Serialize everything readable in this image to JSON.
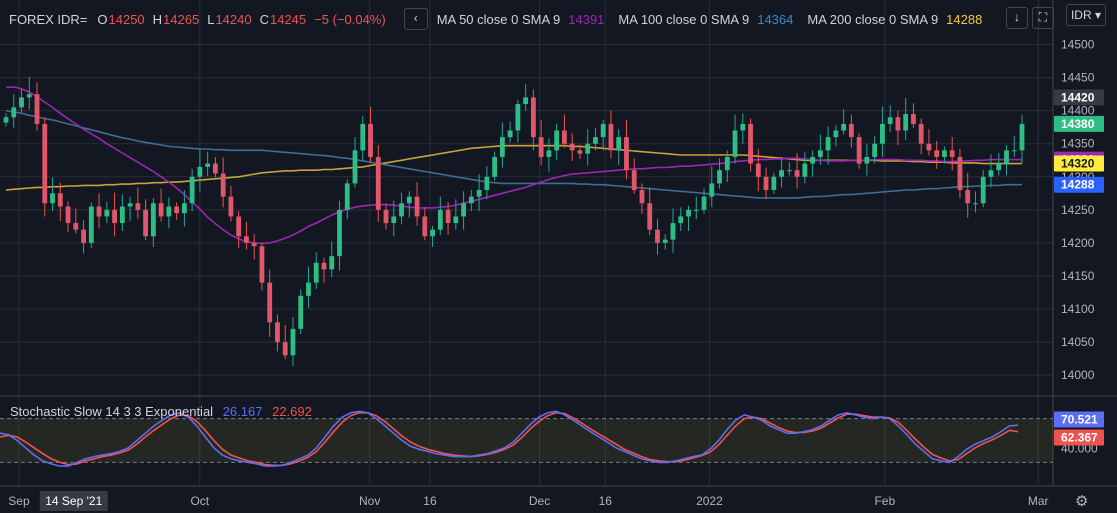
{
  "header": {
    "symbol": "FOREX IDR=",
    "open_label": "O",
    "open": "14250",
    "high_label": "H",
    "high": "14265",
    "low_label": "L",
    "low": "14240",
    "close_label": "C",
    "close": "14245",
    "change": "−5 (−0.04%)",
    "ma50_label": "MA 50 close 0 SMA 9",
    "ma50_value": "14391",
    "ma100_label": "MA 100 close 0 SMA 9",
    "ma100_value": "14364",
    "ma200_label": "MA 200 close 0 SMA 9",
    "ma200_value": "14288",
    "currency_button": "IDR",
    "collapse_icon": "chevron-left-icon",
    "download_icon": "download-arrow-icon",
    "fullscreen_icon": "fullscreen-icon",
    "settings_icon": "gear-icon"
  },
  "stochastic": {
    "label": "Stochastic Slow 14 3 3 Exponential",
    "k_value": "26.167",
    "d_value": "22.692"
  },
  "colors": {
    "background": "#131722",
    "grid": "#2a2e39",
    "up": "#26a69a",
    "up_body": "#2ebd85",
    "down": "#ef5350",
    "down_body": "#e0576b",
    "ma50": "#9c27b0",
    "ma100": "#3d6e94",
    "ma200": "#c9a23b",
    "stoch_k": "#5b6ef5",
    "stoch_d": "#ef5350",
    "text": "#d1d4dc"
  },
  "chart_data": {
    "type": "candlestick",
    "y_ticks": [
      "14500",
      "14450",
      "14400",
      "14350",
      "14300",
      "14250",
      "14200",
      "14150",
      "14100",
      "14050",
      "14000"
    ],
    "ylim": [
      13970,
      14525
    ],
    "price_badges": [
      {
        "value": "14420",
        "color": "#363a45",
        "text": "#ffffff"
      },
      {
        "value": "14380",
        "color": "#2ebd85",
        "text": "#ffffff"
      },
      {
        "value": "14326",
        "color": "#9c27b0",
        "text": "#ffffff"
      },
      {
        "value": "14320",
        "color": "#ffeb3b",
        "text": "#131722"
      },
      {
        "value": "14288",
        "color": "#2962ff",
        "text": "#ffffff"
      }
    ],
    "x_labels": [
      {
        "label": "Sep",
        "x": 2
      },
      {
        "label": "Oct",
        "x": 35
      },
      {
        "label": "Nov",
        "x": 66
      },
      {
        "label": "16",
        "x": 77
      },
      {
        "label": "Dec",
        "x": 97
      },
      {
        "label": "16",
        "x": 109
      },
      {
        "label": "2022",
        "x": 128
      },
      {
        "label": "Feb",
        "x": 160
      },
      {
        "label": "Mar",
        "x": 188
      }
    ],
    "x_highlight": "14 Sep '21",
    "x_highlight_at": 12,
    "closes": [
      14390,
      14405,
      14420,
      14425,
      14380,
      14260,
      14275,
      14255,
      14230,
      14220,
      14200,
      14255,
      14240,
      14250,
      14230,
      14255,
      14260,
      14250,
      14210,
      14260,
      14240,
      14255,
      14245,
      14260,
      14300,
      14315,
      14320,
      14305,
      14270,
      14240,
      14210,
      14200,
      14195,
      14140,
      14080,
      14050,
      14030,
      14070,
      14120,
      14140,
      14170,
      14160,
      14180,
      14250,
      14290,
      14340,
      14380,
      14330,
      14250,
      14230,
      14240,
      14260,
      14270,
      14240,
      14210,
      14220,
      14250,
      14230,
      14240,
      14260,
      14270,
      14280,
      14300,
      14330,
      14360,
      14370,
      14410,
      14420,
      14360,
      14330,
      14340,
      14370,
      14350,
      14340,
      14335,
      14350,
      14360,
      14380,
      14340,
      14360,
      14310,
      14280,
      14260,
      14220,
      14200,
      14205,
      14230,
      14240,
      14250,
      14250,
      14270,
      14290,
      14310,
      14330,
      14370,
      14380,
      14320,
      14300,
      14280,
      14300,
      14310,
      14310,
      14300,
      14320,
      14330,
      14340,
      14360,
      14370,
      14380,
      14360,
      14320,
      14330,
      14350,
      14380,
      14390,
      14370,
      14395,
      14380,
      14350,
      14340,
      14330,
      14340,
      14330,
      14280,
      14260,
      14260,
      14300,
      14310,
      14320,
      14340,
      14340,
      14380
    ],
    "ma50": [
      14435,
      14436,
      14433,
      14428,
      14421,
      14413,
      14405,
      14396,
      14388,
      14380,
      14372,
      14365,
      14358,
      14350,
      14343,
      14336,
      14329,
      14322,
      14315,
      14308,
      14300,
      14292,
      14283,
      14273,
      14262,
      14251,
      14239,
      14229,
      14220,
      14212,
      14206,
      14202,
      14200,
      14199,
      14200,
      14203,
      14207,
      14212,
      14218,
      14225,
      14230,
      14236,
      14242,
      14247,
      14251,
      14254,
      14256,
      14257,
      14258,
      14258,
      14257,
      14256,
      14254,
      14253,
      14253,
      14253,
      14254,
      14255,
      14257,
      14260,
      14263,
      14266,
      14269,
      14272,
      14275,
      14278,
      14281,
      14284,
      14288,
      14292,
      14296,
      14299,
      14302,
      14304,
      14305,
      14306,
      14307,
      14308,
      14309,
      14310,
      14311,
      14312,
      14312,
      14313,
      14314,
      14314,
      14315,
      14316,
      14316,
      14317,
      14318,
      14319,
      14320,
      14321,
      14323,
      14324,
      14325,
      14326,
      14326,
      14327,
      14327,
      14328,
      14328,
      14327,
      14326,
      14325,
      14324,
      14324,
      14324,
      14325,
      14325,
      14325,
      14326,
      14326,
      14326,
      14326,
      14325,
      14325,
      14325,
      14324,
      14324,
      14323,
      14323,
      14324,
      14324,
      14325,
      14325,
      14326,
      14326,
      14326,
      14326,
      14326
    ],
    "ma100": [
      14400,
      14398,
      14396,
      14393,
      14391,
      14388,
      14386,
      14383,
      14380,
      14377,
      14374,
      14371,
      14368,
      14365,
      14362,
      14359,
      14357,
      14354,
      14352,
      14350,
      14348,
      14346,
      14345,
      14344,
      14343,
      14342,
      14342,
      14341,
      14341,
      14340,
      14340,
      14340,
      14340,
      14340,
      14339,
      14338,
      14337,
      14336,
      14335,
      14334,
      14333,
      14332,
      14331,
      14329,
      14328,
      14326,
      14324,
      14322,
      14320,
      14318,
      14316,
      14314,
      14312,
      14310,
      14308,
      14306,
      14304,
      14302,
      14300,
      14298,
      14296,
      14294,
      14292,
      14291,
      14290,
      14290,
      14290,
      14290,
      14290,
      14290,
      14290,
      14290,
      14290,
      14290,
      14289,
      14289,
      14288,
      14288,
      14287,
      14286,
      14285,
      14284,
      14283,
      14282,
      14281,
      14280,
      14279,
      14278,
      14277,
      14276,
      14275,
      14274,
      14273,
      14272,
      14271,
      14270,
      14269,
      14268,
      14268,
      14268,
      14268,
      14268,
      14268,
      14269,
      14270,
      14270,
      14271,
      14272,
      14273,
      14273,
      14274,
      14275,
      14276,
      14277,
      14278,
      14279,
      14280,
      14280,
      14281,
      14282,
      14282,
      14283,
      14284,
      14285,
      14285,
      14286,
      14286,
      14287,
      14287,
      14288,
      14288,
      14288
    ],
    "ma200": [
      14280,
      14281,
      14282,
      14283,
      14284,
      14284,
      14285,
      14285,
      14286,
      14286,
      14287,
      14287,
      14287,
      14288,
      14288,
      14289,
      14289,
      14290,
      14290,
      14291,
      14291,
      14292,
      14292,
      14293,
      14294,
      14295,
      14296,
      14297,
      14298,
      14299,
      14300,
      14302,
      14304,
      14306,
      14307,
      14308,
      14309,
      14309,
      14310,
      14310,
      14310,
      14311,
      14311,
      14312,
      14313,
      14314,
      14315,
      14317,
      14319,
      14321,
      14323,
      14325,
      14327,
      14329,
      14331,
      14333,
      14335,
      14337,
      14339,
      14341,
      14343,
      14344,
      14345,
      14346,
      14347,
      14347,
      14347,
      14347,
      14347,
      14347,
      14347,
      14347,
      14347,
      14346,
      14346,
      14345,
      14344,
      14343,
      14342,
      14341,
      14340,
      14339,
      14338,
      14337,
      14336,
      14335,
      14334,
      14333,
      14333,
      14333,
      14333,
      14333,
      14333,
      14333,
      14333,
      14333,
      14332,
      14331,
      14330,
      14329,
      14328,
      14327,
      14326,
      14325,
      14325,
      14325,
      14325,
      14325,
      14325,
      14325,
      14325,
      14325,
      14325,
      14324,
      14324,
      14324,
      14324,
      14323,
      14323,
      14322,
      14322,
      14322,
      14321,
      14321,
      14321,
      14321,
      14320,
      14320,
      14320,
      14320,
      14320,
      14320
    ],
    "stoch_ylim": [
      0,
      100
    ],
    "stoch_levels": [
      80,
      20
    ],
    "stoch_axis_ticks": [
      "80.000",
      "40.000"
    ],
    "stoch_badges": [
      {
        "value": "70.521",
        "color": "#5b6ef5"
      },
      {
        "value": "62.367",
        "color": "#ef5350"
      }
    ],
    "stoch_k": [
      60,
      58,
      50,
      40,
      30,
      22,
      18,
      15,
      15,
      20,
      25,
      28,
      30,
      32,
      35,
      40,
      50,
      60,
      70,
      78,
      85,
      88,
      82,
      70,
      55,
      40,
      30,
      25,
      22,
      20,
      18,
      15,
      15,
      16,
      20,
      25,
      30,
      40,
      55,
      70,
      82,
      88,
      90,
      88,
      80,
      70,
      60,
      50,
      42,
      38,
      35,
      32,
      30,
      28,
      28,
      28,
      30,
      32,
      36,
      40,
      48,
      60,
      72,
      82,
      88,
      90,
      85,
      78,
      70,
      62,
      55,
      48,
      40,
      35,
      30,
      25,
      22,
      20,
      20,
      22,
      25,
      28,
      30,
      38,
      50,
      65,
      78,
      85,
      82,
      78,
      70,
      65,
      60,
      60,
      62,
      65,
      70,
      78,
      85,
      88,
      85,
      82,
      80,
      82,
      80,
      70,
      58,
      45,
      35,
      25,
      22,
      20,
      28,
      38,
      45,
      50,
      55,
      62,
      70,
      71
    ],
    "stoch_d": [
      55,
      57,
      55,
      48,
      40,
      32,
      25,
      20,
      17,
      18,
      22,
      25,
      28,
      30,
      33,
      37,
      45,
      55,
      64,
      72,
      80,
      85,
      84,
      76,
      64,
      50,
      38,
      30,
      26,
      22,
      20,
      17,
      16,
      16,
      18,
      22,
      27,
      35,
      48,
      62,
      75,
      84,
      88,
      88,
      84,
      76,
      66,
      56,
      48,
      42,
      38,
      35,
      32,
      30,
      29,
      28,
      29,
      31,
      34,
      38,
      44,
      54,
      66,
      76,
      84,
      88,
      87,
      81,
      74,
      66,
      59,
      52,
      45,
      38,
      33,
      28,
      24,
      22,
      21,
      21,
      23,
      26,
      29,
      34,
      44,
      57,
      70,
      80,
      82,
      80,
      74,
      68,
      63,
      61,
      61,
      63,
      67,
      74,
      81,
      86,
      86,
      84,
      82,
      82,
      81,
      75,
      64,
      52,
      41,
      31,
      26,
      22,
      24,
      32,
      40,
      46,
      51,
      57,
      64,
      62
    ]
  }
}
